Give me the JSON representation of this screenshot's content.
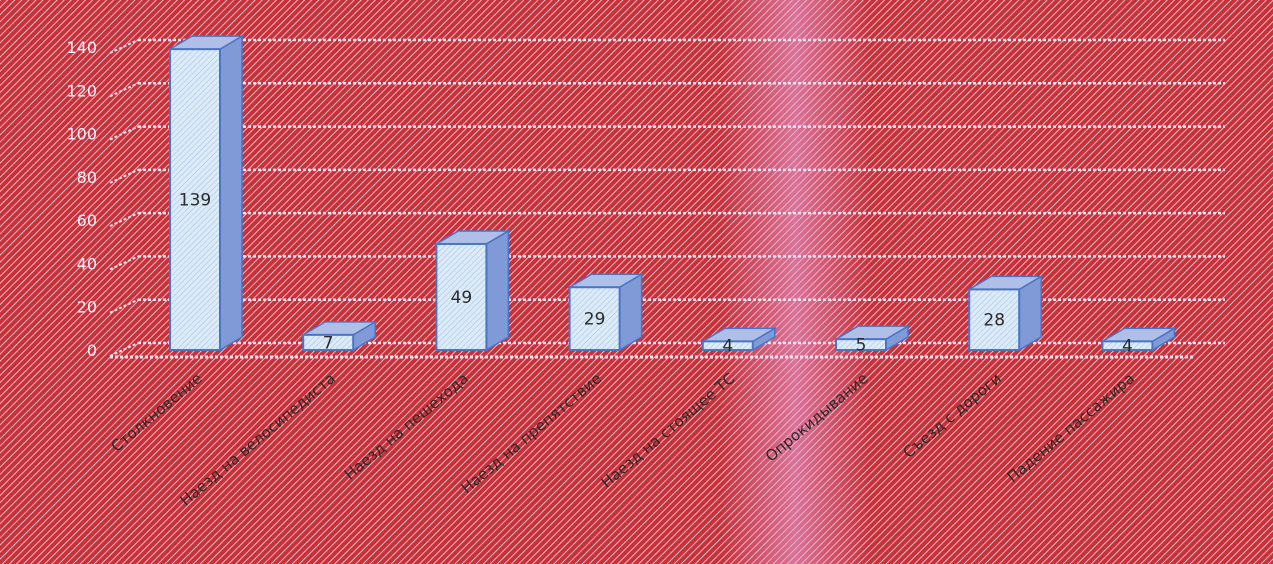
{
  "chart_data": {
    "type": "bar",
    "style": "3d-column",
    "categories": [
      "Столкновение",
      "Наезд на велосипедиста",
      "Наезд на пешехода",
      "Наезд на препятствие",
      "Наезд на стоящее ТС",
      "Опрокидывание",
      "Съезд с дороги",
      "Падение пассажира"
    ],
    "values": [
      139,
      7,
      49,
      29,
      4,
      5,
      28,
      4
    ],
    "y_ticks": [
      "0",
      "20",
      "40",
      "60",
      "80",
      "100",
      "120",
      "140"
    ],
    "ylim": [
      0,
      140
    ],
    "grid": true,
    "legend": "none",
    "colors": {
      "background": "#c8303a",
      "bar_face": "#dcebf8",
      "bar_edge": "#4a74c6",
      "bar_side": "#7f9ad6",
      "bar_top": "#b0bfe8",
      "gridline": "#f3e0f2",
      "band": "#e9a8e0"
    }
  }
}
